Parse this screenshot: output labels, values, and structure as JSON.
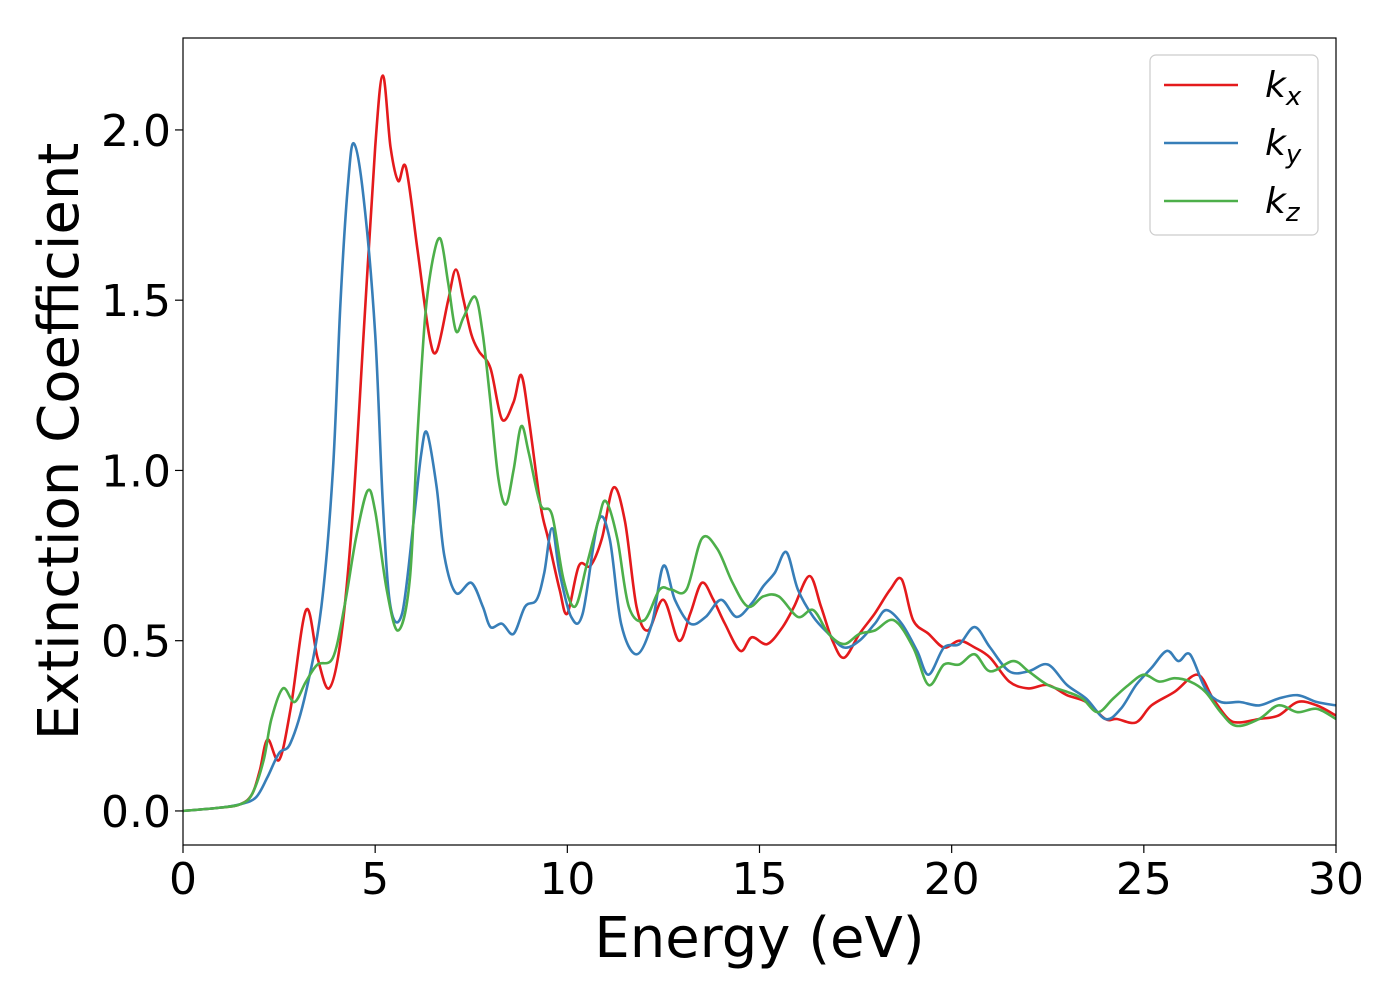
{
  "chart_data": {
    "type": "line",
    "title": "",
    "xlabel": "Energy (eV)",
    "ylabel": "Extinction Coefficient",
    "xlim": [
      0,
      30
    ],
    "ylim": [
      -0.1,
      2.27
    ],
    "xticks": [
      0,
      5,
      10,
      15,
      20,
      25,
      30
    ],
    "xtick_labels": [
      "0",
      "5",
      "10",
      "15",
      "20",
      "25",
      "30"
    ],
    "yticks": [
      0.0,
      0.5,
      1.0,
      1.5,
      2.0
    ],
    "ytick_labels": [
      "0.0",
      "0.5",
      "1.0",
      "1.5",
      "2.0"
    ],
    "grid": false,
    "legend_position": "top-right",
    "series": [
      {
        "name": "k_x",
        "legend_base": "k",
        "legend_sub": "x",
        "color": "#e41a1c",
        "points": [
          [
            0,
            0
          ],
          [
            1,
            0.01
          ],
          [
            1.5,
            0.02
          ],
          [
            1.8,
            0.05
          ],
          [
            2.0,
            0.12
          ],
          [
            2.2,
            0.21
          ],
          [
            2.5,
            0.15
          ],
          [
            2.8,
            0.3
          ],
          [
            3.2,
            0.59
          ],
          [
            3.5,
            0.45
          ],
          [
            3.8,
            0.36
          ],
          [
            4.1,
            0.5
          ],
          [
            4.4,
            0.85
          ],
          [
            4.7,
            1.4
          ],
          [
            5.0,
            1.95
          ],
          [
            5.2,
            2.16
          ],
          [
            5.4,
            1.95
          ],
          [
            5.6,
            1.85
          ],
          [
            5.8,
            1.89
          ],
          [
            6.1,
            1.65
          ],
          [
            6.4,
            1.4
          ],
          [
            6.6,
            1.35
          ],
          [
            6.9,
            1.5
          ],
          [
            7.1,
            1.59
          ],
          [
            7.3,
            1.5
          ],
          [
            7.5,
            1.4
          ],
          [
            7.7,
            1.35
          ],
          [
            8.0,
            1.3
          ],
          [
            8.3,
            1.15
          ],
          [
            8.6,
            1.2
          ],
          [
            8.8,
            1.28
          ],
          [
            9.0,
            1.15
          ],
          [
            9.3,
            0.9
          ],
          [
            9.5,
            0.8
          ],
          [
            9.8,
            0.65
          ],
          [
            10.0,
            0.58
          ],
          [
            10.3,
            0.72
          ],
          [
            10.6,
            0.72
          ],
          [
            10.9,
            0.8
          ],
          [
            11.2,
            0.95
          ],
          [
            11.5,
            0.85
          ],
          [
            11.8,
            0.6
          ],
          [
            12.1,
            0.53
          ],
          [
            12.5,
            0.62
          ],
          [
            12.9,
            0.5
          ],
          [
            13.2,
            0.58
          ],
          [
            13.5,
            0.67
          ],
          [
            13.8,
            0.62
          ],
          [
            14.1,
            0.55
          ],
          [
            14.5,
            0.47
          ],
          [
            14.8,
            0.51
          ],
          [
            15.2,
            0.49
          ],
          [
            15.6,
            0.54
          ],
          [
            15.9,
            0.6
          ],
          [
            16.3,
            0.69
          ],
          [
            16.6,
            0.6
          ],
          [
            16.9,
            0.5
          ],
          [
            17.2,
            0.45
          ],
          [
            17.6,
            0.52
          ],
          [
            18.0,
            0.58
          ],
          [
            18.4,
            0.65
          ],
          [
            18.7,
            0.68
          ],
          [
            19.0,
            0.56
          ],
          [
            19.4,
            0.52
          ],
          [
            19.8,
            0.48
          ],
          [
            20.2,
            0.5
          ],
          [
            20.6,
            0.48
          ],
          [
            21.0,
            0.45
          ],
          [
            21.5,
            0.38
          ],
          [
            22.0,
            0.36
          ],
          [
            22.5,
            0.37
          ],
          [
            23.0,
            0.34
          ],
          [
            23.5,
            0.32
          ],
          [
            24.0,
            0.27
          ],
          [
            24.3,
            0.27
          ],
          [
            24.8,
            0.26
          ],
          [
            25.2,
            0.31
          ],
          [
            25.8,
            0.35
          ],
          [
            26.4,
            0.4
          ],
          [
            26.8,
            0.33
          ],
          [
            27.2,
            0.27
          ],
          [
            27.5,
            0.26
          ],
          [
            28.0,
            0.27
          ],
          [
            28.5,
            0.28
          ],
          [
            29.0,
            0.32
          ],
          [
            29.5,
            0.31
          ],
          [
            30.0,
            0.28
          ]
        ]
      },
      {
        "name": "k_y",
        "legend_base": "k",
        "legend_sub": "y",
        "color": "#377eb8",
        "points": [
          [
            0,
            0
          ],
          [
            1,
            0.01
          ],
          [
            1.5,
            0.02
          ],
          [
            1.9,
            0.04
          ],
          [
            2.2,
            0.1
          ],
          [
            2.5,
            0.17
          ],
          [
            2.8,
            0.2
          ],
          [
            3.2,
            0.35
          ],
          [
            3.6,
            0.6
          ],
          [
            3.9,
            1.0
          ],
          [
            4.1,
            1.5
          ],
          [
            4.3,
            1.85
          ],
          [
            4.45,
            1.96
          ],
          [
            4.7,
            1.8
          ],
          [
            5.0,
            1.4
          ],
          [
            5.2,
            0.9
          ],
          [
            5.4,
            0.6
          ],
          [
            5.7,
            0.58
          ],
          [
            6.0,
            0.85
          ],
          [
            6.2,
            1.05
          ],
          [
            6.35,
            1.11
          ],
          [
            6.6,
            0.95
          ],
          [
            6.8,
            0.75
          ],
          [
            7.1,
            0.64
          ],
          [
            7.5,
            0.67
          ],
          [
            7.8,
            0.6
          ],
          [
            8.0,
            0.54
          ],
          [
            8.3,
            0.55
          ],
          [
            8.6,
            0.52
          ],
          [
            8.9,
            0.6
          ],
          [
            9.2,
            0.62
          ],
          [
            9.4,
            0.7
          ],
          [
            9.6,
            0.83
          ],
          [
            9.8,
            0.7
          ],
          [
            10.1,
            0.57
          ],
          [
            10.4,
            0.58
          ],
          [
            10.8,
            0.85
          ],
          [
            11.1,
            0.8
          ],
          [
            11.4,
            0.55
          ],
          [
            11.8,
            0.46
          ],
          [
            12.2,
            0.55
          ],
          [
            12.5,
            0.72
          ],
          [
            12.8,
            0.62
          ],
          [
            13.2,
            0.55
          ],
          [
            13.6,
            0.57
          ],
          [
            14.0,
            0.62
          ],
          [
            14.4,
            0.57
          ],
          [
            14.8,
            0.61
          ],
          [
            15.1,
            0.66
          ],
          [
            15.4,
            0.7
          ],
          [
            15.7,
            0.76
          ],
          [
            16.0,
            0.65
          ],
          [
            16.4,
            0.57
          ],
          [
            16.8,
            0.52
          ],
          [
            17.2,
            0.48
          ],
          [
            17.6,
            0.5
          ],
          [
            18.0,
            0.55
          ],
          [
            18.3,
            0.59
          ],
          [
            18.7,
            0.55
          ],
          [
            19.1,
            0.47
          ],
          [
            19.4,
            0.4
          ],
          [
            19.8,
            0.48
          ],
          [
            20.2,
            0.49
          ],
          [
            20.6,
            0.54
          ],
          [
            21.0,
            0.48
          ],
          [
            21.5,
            0.41
          ],
          [
            22.0,
            0.41
          ],
          [
            22.5,
            0.43
          ],
          [
            23.0,
            0.37
          ],
          [
            23.5,
            0.33
          ],
          [
            24.0,
            0.27
          ],
          [
            24.4,
            0.3
          ],
          [
            24.8,
            0.37
          ],
          [
            25.2,
            0.42
          ],
          [
            25.6,
            0.47
          ],
          [
            25.9,
            0.44
          ],
          [
            26.2,
            0.46
          ],
          [
            26.6,
            0.36
          ],
          [
            27.0,
            0.32
          ],
          [
            27.5,
            0.32
          ],
          [
            28.0,
            0.31
          ],
          [
            28.5,
            0.33
          ],
          [
            29.0,
            0.34
          ],
          [
            29.5,
            0.32
          ],
          [
            30.0,
            0.31
          ]
        ]
      },
      {
        "name": "k_z",
        "legend_base": "k",
        "legend_sub": "z",
        "color": "#4daf4a",
        "points": [
          [
            0,
            0
          ],
          [
            1,
            0.01
          ],
          [
            1.5,
            0.02
          ],
          [
            1.8,
            0.05
          ],
          [
            2.1,
            0.15
          ],
          [
            2.3,
            0.27
          ],
          [
            2.6,
            0.36
          ],
          [
            2.9,
            0.32
          ],
          [
            3.2,
            0.38
          ],
          [
            3.5,
            0.43
          ],
          [
            3.9,
            0.45
          ],
          [
            4.2,
            0.6
          ],
          [
            4.5,
            0.8
          ],
          [
            4.8,
            0.94
          ],
          [
            5.0,
            0.88
          ],
          [
            5.3,
            0.65
          ],
          [
            5.6,
            0.53
          ],
          [
            5.9,
            0.68
          ],
          [
            6.1,
            1.1
          ],
          [
            6.3,
            1.45
          ],
          [
            6.5,
            1.62
          ],
          [
            6.7,
            1.68
          ],
          [
            6.9,
            1.55
          ],
          [
            7.1,
            1.41
          ],
          [
            7.3,
            1.45
          ],
          [
            7.6,
            1.51
          ],
          [
            7.8,
            1.4
          ],
          [
            8.0,
            1.2
          ],
          [
            8.2,
            0.98
          ],
          [
            8.4,
            0.9
          ],
          [
            8.6,
            1.0
          ],
          [
            8.8,
            1.13
          ],
          [
            9.0,
            1.05
          ],
          [
            9.3,
            0.9
          ],
          [
            9.6,
            0.87
          ],
          [
            9.9,
            0.68
          ],
          [
            10.2,
            0.6
          ],
          [
            10.5,
            0.72
          ],
          [
            10.8,
            0.85
          ],
          [
            11.0,
            0.91
          ],
          [
            11.3,
            0.8
          ],
          [
            11.6,
            0.6
          ],
          [
            12.0,
            0.56
          ],
          [
            12.4,
            0.65
          ],
          [
            12.7,
            0.65
          ],
          [
            13.1,
            0.65
          ],
          [
            13.5,
            0.8
          ],
          [
            13.9,
            0.77
          ],
          [
            14.3,
            0.67
          ],
          [
            14.7,
            0.6
          ],
          [
            15.1,
            0.63
          ],
          [
            15.5,
            0.63
          ],
          [
            16.0,
            0.57
          ],
          [
            16.4,
            0.59
          ],
          [
            16.8,
            0.52
          ],
          [
            17.2,
            0.49
          ],
          [
            17.6,
            0.52
          ],
          [
            18.0,
            0.53
          ],
          [
            18.5,
            0.56
          ],
          [
            19.0,
            0.48
          ],
          [
            19.4,
            0.37
          ],
          [
            19.8,
            0.43
          ],
          [
            20.2,
            0.43
          ],
          [
            20.6,
            0.46
          ],
          [
            21.0,
            0.41
          ],
          [
            21.6,
            0.44
          ],
          [
            22.0,
            0.41
          ],
          [
            22.5,
            0.37
          ],
          [
            23.0,
            0.35
          ],
          [
            23.4,
            0.33
          ],
          [
            23.8,
            0.29
          ],
          [
            24.2,
            0.33
          ],
          [
            24.6,
            0.37
          ],
          [
            25.0,
            0.4
          ],
          [
            25.4,
            0.38
          ],
          [
            25.8,
            0.39
          ],
          [
            26.2,
            0.38
          ],
          [
            26.6,
            0.35
          ],
          [
            27.0,
            0.29
          ],
          [
            27.4,
            0.25
          ],
          [
            28.0,
            0.27
          ],
          [
            28.5,
            0.31
          ],
          [
            29.0,
            0.29
          ],
          [
            29.5,
            0.3
          ],
          [
            30.0,
            0.27
          ]
        ]
      }
    ]
  }
}
